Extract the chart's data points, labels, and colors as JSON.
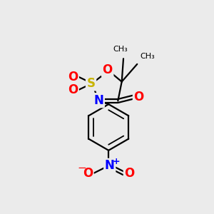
{
  "bg_color": "#ebebeb",
  "atom_colors": {
    "O": "#ff0000",
    "S": "#c8b400",
    "N": "#0000ff"
  },
  "fig_size": [
    3.0,
    3.0
  ],
  "dpi": 100,
  "lw": 1.6
}
